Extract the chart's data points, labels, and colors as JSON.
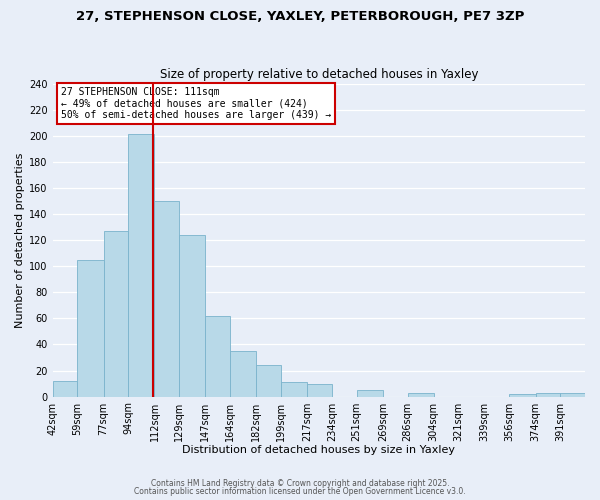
{
  "title": "27, STEPHENSON CLOSE, YAXLEY, PETERBOROUGH, PE7 3ZP",
  "subtitle": "Size of property relative to detached houses in Yaxley",
  "xlabel": "Distribution of detached houses by size in Yaxley",
  "ylabel": "Number of detached properties",
  "bin_labels": [
    "42sqm",
    "59sqm",
    "77sqm",
    "94sqm",
    "112sqm",
    "129sqm",
    "147sqm",
    "164sqm",
    "182sqm",
    "199sqm",
    "217sqm",
    "234sqm",
    "251sqm",
    "269sqm",
    "286sqm",
    "304sqm",
    "321sqm",
    "339sqm",
    "356sqm",
    "374sqm",
    "391sqm"
  ],
  "bin_edges": [
    42,
    59,
    77,
    94,
    112,
    129,
    147,
    164,
    182,
    199,
    217,
    234,
    251,
    269,
    286,
    304,
    321,
    339,
    356,
    374,
    391
  ],
  "bar_heights": [
    12,
    105,
    127,
    201,
    150,
    124,
    62,
    35,
    24,
    11,
    10,
    0,
    5,
    0,
    3,
    0,
    0,
    0,
    2,
    3,
    3
  ],
  "bar_color": "#b8d9e8",
  "bar_edge_color": "#7ab3cc",
  "vline_x": 111,
  "vline_color": "#cc0000",
  "ylim": [
    0,
    240
  ],
  "yticks": [
    0,
    20,
    40,
    60,
    80,
    100,
    120,
    140,
    160,
    180,
    200,
    220,
    240
  ],
  "annotation_title": "27 STEPHENSON CLOSE: 111sqm",
  "annotation_line1": "← 49% of detached houses are smaller (424)",
  "annotation_line2": "50% of semi-detached houses are larger (439) →",
  "footer1": "Contains HM Land Registry data © Crown copyright and database right 2025.",
  "footer2": "Contains public sector information licensed under the Open Government Licence v3.0.",
  "background_color": "#e8eef8",
  "grid_color": "#ffffff",
  "title_fontsize": 9.5,
  "subtitle_fontsize": 8.5,
  "axis_label_fontsize": 8,
  "tick_fontsize": 7
}
